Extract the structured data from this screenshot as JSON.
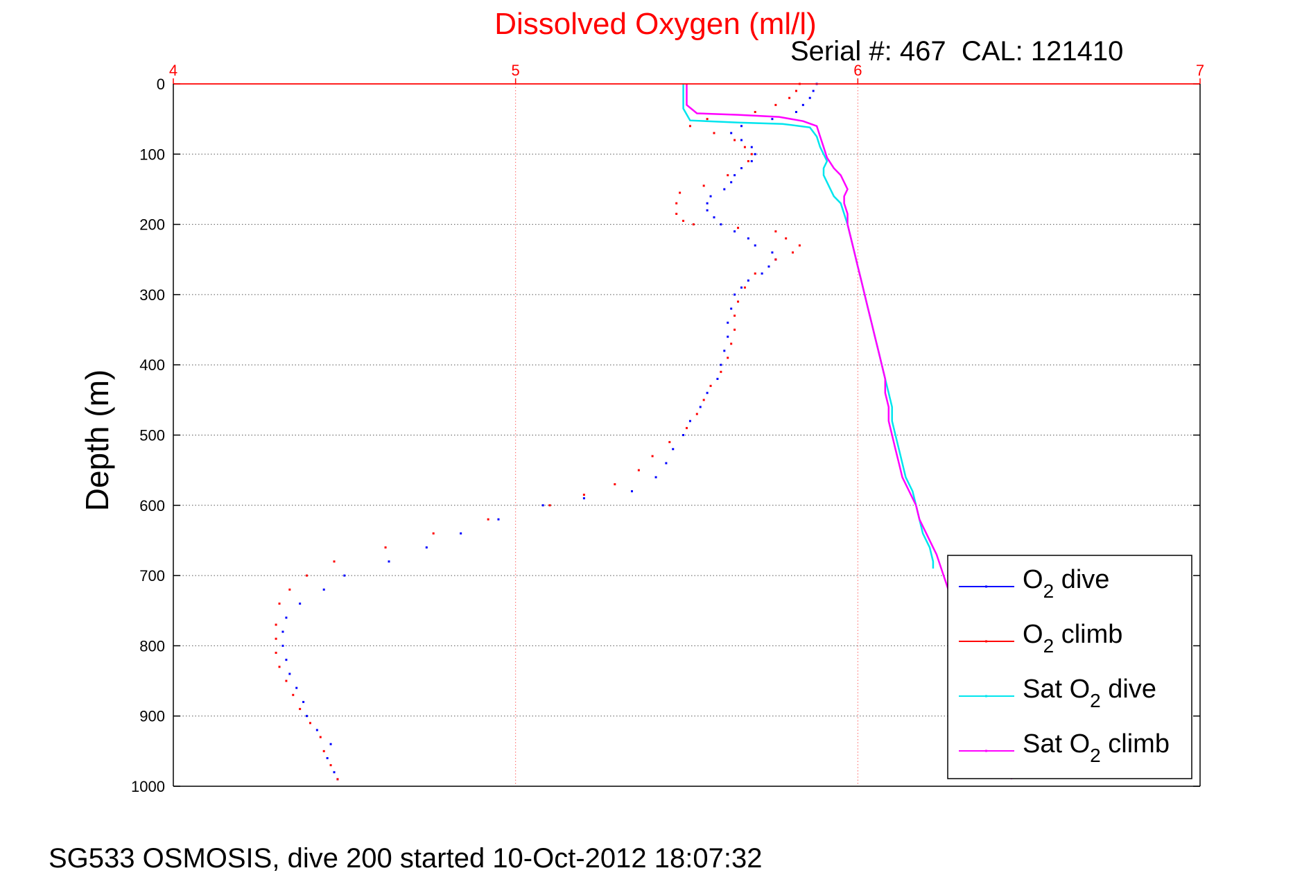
{
  "title": "Dissolved Oxygen (ml/l)",
  "subtitle": "Serial #: 467  CAL: 121410",
  "caption": "SG533 OSMOSIS, dive 200 started 10-Oct-2012 18:07:32",
  "colors": {
    "title": "#ff0000",
    "top_axis": "#ff0000",
    "grid_x": "#ff6060",
    "grid_y": "#555555",
    "o2_dive": "#0000ff",
    "o2_climb": "#ff0000",
    "sat_dive": "#00e5ee",
    "sat_climb": "#ff00ff"
  },
  "chart_data": {
    "type": "scatter",
    "xlabel": "",
    "ylabel": "Depth (m)",
    "xlim": [
      4,
      7
    ],
    "ylim": [
      0,
      1000
    ],
    "y_reversed": true,
    "x_axis_position": "top",
    "x_ticks": [
      "4",
      "5",
      "6",
      "7"
    ],
    "y_ticks": [
      "0",
      "100",
      "200",
      "300",
      "400",
      "500",
      "600",
      "700",
      "800",
      "900",
      "1000"
    ],
    "grid": true,
    "legend_position": "bottom-right",
    "series": [
      {
        "name": "O2 dive",
        "legend": {
          "prefix": "O",
          "sub": "2",
          "suffix": " dive"
        },
        "style": "dots",
        "color": "#0000ff",
        "points": [
          [
            5.88,
            0
          ],
          [
            5.87,
            10
          ],
          [
            5.86,
            20
          ],
          [
            5.84,
            30
          ],
          [
            5.82,
            40
          ],
          [
            5.75,
            50
          ],
          [
            5.66,
            60
          ],
          [
            5.63,
            70
          ],
          [
            5.66,
            80
          ],
          [
            5.69,
            90
          ],
          [
            5.7,
            100
          ],
          [
            5.69,
            110
          ],
          [
            5.66,
            120
          ],
          [
            5.64,
            130
          ],
          [
            5.63,
            140
          ],
          [
            5.61,
            150
          ],
          [
            5.57,
            160
          ],
          [
            5.56,
            170
          ],
          [
            5.56,
            180
          ],
          [
            5.58,
            190
          ],
          [
            5.6,
            200
          ],
          [
            5.64,
            210
          ],
          [
            5.68,
            220
          ],
          [
            5.7,
            230
          ],
          [
            5.75,
            240
          ],
          [
            5.76,
            250
          ],
          [
            5.74,
            260
          ],
          [
            5.72,
            270
          ],
          [
            5.68,
            280
          ],
          [
            5.66,
            290
          ],
          [
            5.64,
            300
          ],
          [
            5.63,
            320
          ],
          [
            5.62,
            340
          ],
          [
            5.62,
            360
          ],
          [
            5.61,
            380
          ],
          [
            5.6,
            400
          ],
          [
            5.59,
            420
          ],
          [
            5.56,
            440
          ],
          [
            5.54,
            460
          ],
          [
            5.51,
            480
          ],
          [
            5.49,
            500
          ],
          [
            5.46,
            520
          ],
          [
            5.44,
            540
          ],
          [
            5.41,
            560
          ],
          [
            5.34,
            580
          ],
          [
            5.2,
            590
          ],
          [
            5.08,
            600
          ],
          [
            4.95,
            620
          ],
          [
            4.84,
            640
          ],
          [
            4.74,
            660
          ],
          [
            4.63,
            680
          ],
          [
            4.5,
            700
          ],
          [
            4.44,
            720
          ],
          [
            4.37,
            740
          ],
          [
            4.33,
            760
          ],
          [
            4.32,
            780
          ],
          [
            4.32,
            800
          ],
          [
            4.33,
            820
          ],
          [
            4.34,
            840
          ],
          [
            4.36,
            860
          ],
          [
            4.38,
            880
          ],
          [
            4.39,
            900
          ],
          [
            4.42,
            920
          ],
          [
            4.46,
            940
          ],
          [
            4.45,
            960
          ],
          [
            4.47,
            980
          ],
          [
            4.48,
            990
          ]
        ]
      },
      {
        "name": "O2 climb",
        "legend": {
          "prefix": "O",
          "sub": "2",
          "suffix": " climb"
        },
        "style": "dots",
        "color": "#ff0000",
        "points": [
          [
            5.83,
            0
          ],
          [
            5.82,
            10
          ],
          [
            5.8,
            20
          ],
          [
            5.76,
            30
          ],
          [
            5.7,
            40
          ],
          [
            5.56,
            50
          ],
          [
            5.51,
            60
          ],
          [
            5.58,
            70
          ],
          [
            5.64,
            80
          ],
          [
            5.67,
            90
          ],
          [
            5.69,
            100
          ],
          [
            5.68,
            110
          ],
          [
            5.62,
            130
          ],
          [
            5.55,
            145
          ],
          [
            5.48,
            155
          ],
          [
            5.47,
            170
          ],
          [
            5.47,
            185
          ],
          [
            5.49,
            195
          ],
          [
            5.52,
            200
          ],
          [
            5.65,
            205
          ],
          [
            5.76,
            210
          ],
          [
            5.79,
            220
          ],
          [
            5.83,
            230
          ],
          [
            5.81,
            240
          ],
          [
            5.76,
            250
          ],
          [
            5.7,
            270
          ],
          [
            5.67,
            290
          ],
          [
            5.65,
            310
          ],
          [
            5.64,
            330
          ],
          [
            5.64,
            350
          ],
          [
            5.63,
            370
          ],
          [
            5.62,
            390
          ],
          [
            5.6,
            410
          ],
          [
            5.57,
            430
          ],
          [
            5.55,
            450
          ],
          [
            5.53,
            470
          ],
          [
            5.5,
            490
          ],
          [
            5.45,
            510
          ],
          [
            5.4,
            530
          ],
          [
            5.36,
            550
          ],
          [
            5.29,
            570
          ],
          [
            5.2,
            585
          ],
          [
            5.1,
            600
          ],
          [
            4.92,
            620
          ],
          [
            4.76,
            640
          ],
          [
            4.62,
            660
          ],
          [
            4.47,
            680
          ],
          [
            4.39,
            700
          ],
          [
            4.34,
            720
          ],
          [
            4.31,
            740
          ],
          [
            4.3,
            770
          ],
          [
            4.3,
            790
          ],
          [
            4.3,
            810
          ],
          [
            4.31,
            830
          ],
          [
            4.33,
            850
          ],
          [
            4.35,
            870
          ],
          [
            4.37,
            890
          ],
          [
            4.4,
            910
          ],
          [
            4.43,
            930
          ],
          [
            4.44,
            950
          ],
          [
            4.46,
            970
          ],
          [
            4.48,
            990
          ]
        ]
      },
      {
        "name": "Sat O2 dive",
        "legend": {
          "prefix": "Sat O",
          "sub": "2",
          "suffix": " dive"
        },
        "style": "line",
        "color": "#00e5ee",
        "points": [
          [
            5.49,
            0
          ],
          [
            5.49,
            35
          ],
          [
            5.51,
            52
          ],
          [
            5.65,
            55
          ],
          [
            5.78,
            57
          ],
          [
            5.86,
            62
          ],
          [
            5.88,
            75
          ],
          [
            5.89,
            90
          ],
          [
            5.9,
            100
          ],
          [
            5.91,
            110
          ],
          [
            5.9,
            120
          ],
          [
            5.9,
            130
          ],
          [
            5.91,
            140
          ],
          [
            5.92,
            150
          ],
          [
            5.93,
            160
          ],
          [
            5.95,
            170
          ],
          [
            5.96,
            185
          ],
          [
            5.97,
            200
          ],
          [
            5.98,
            220
          ],
          [
            5.99,
            240
          ],
          [
            6.0,
            260
          ],
          [
            6.01,
            280
          ],
          [
            6.02,
            300
          ],
          [
            6.03,
            320
          ],
          [
            6.04,
            340
          ],
          [
            6.05,
            360
          ],
          [
            6.06,
            380
          ],
          [
            6.07,
            400
          ],
          [
            6.08,
            420
          ],
          [
            6.09,
            440
          ],
          [
            6.1,
            460
          ],
          [
            6.1,
            480
          ],
          [
            6.11,
            500
          ],
          [
            6.12,
            520
          ],
          [
            6.13,
            540
          ],
          [
            6.14,
            560
          ],
          [
            6.16,
            580
          ],
          [
            6.17,
            600
          ],
          [
            6.18,
            620
          ],
          [
            6.19,
            640
          ],
          [
            6.21,
            660
          ],
          [
            6.22,
            680
          ],
          [
            6.22,
            690
          ]
        ]
      },
      {
        "name": "Sat O2 climb",
        "legend": {
          "prefix": "Sat O",
          "sub": "2",
          "suffix": " climb"
        },
        "style": "line",
        "color": "#ff00ff",
        "points": [
          [
            5.5,
            0
          ],
          [
            5.5,
            30
          ],
          [
            5.53,
            42
          ],
          [
            5.65,
            44
          ],
          [
            5.77,
            47
          ],
          [
            5.84,
            53
          ],
          [
            5.88,
            60
          ],
          [
            5.89,
            75
          ],
          [
            5.9,
            90
          ],
          [
            5.91,
            105
          ],
          [
            5.93,
            120
          ],
          [
            5.95,
            130
          ],
          [
            5.96,
            140
          ],
          [
            5.97,
            150
          ],
          [
            5.96,
            160
          ],
          [
            5.96,
            170
          ],
          [
            5.97,
            185
          ],
          [
            5.97,
            200
          ],
          [
            5.98,
            220
          ],
          [
            5.99,
            240
          ],
          [
            6.0,
            260
          ],
          [
            6.01,
            280
          ],
          [
            6.02,
            300
          ],
          [
            6.03,
            320
          ],
          [
            6.04,
            340
          ],
          [
            6.05,
            360
          ],
          [
            6.06,
            380
          ],
          [
            6.07,
            400
          ],
          [
            6.08,
            420
          ],
          [
            6.08,
            440
          ],
          [
            6.09,
            460
          ],
          [
            6.09,
            480
          ],
          [
            6.1,
            500
          ],
          [
            6.11,
            520
          ],
          [
            6.12,
            540
          ],
          [
            6.13,
            560
          ],
          [
            6.15,
            580
          ],
          [
            6.17,
            600
          ],
          [
            6.18,
            620
          ],
          [
            6.2,
            640
          ],
          [
            6.22,
            660
          ],
          [
            6.23,
            670
          ],
          [
            6.45,
            990
          ]
        ]
      }
    ]
  }
}
